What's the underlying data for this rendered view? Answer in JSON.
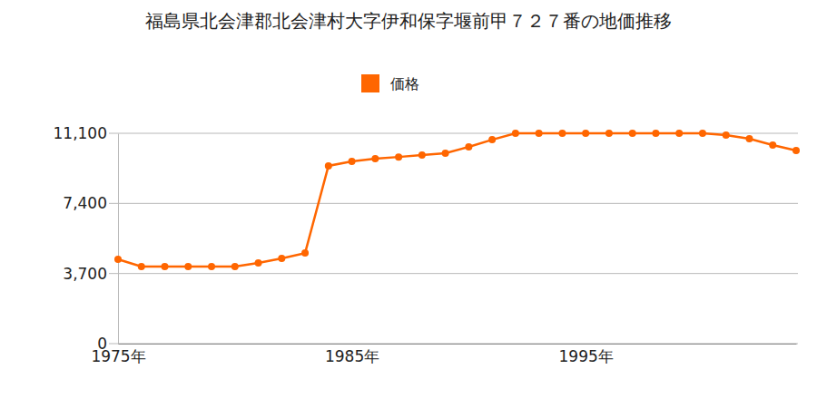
{
  "chart_data": {
    "type": "line",
    "title": "福島県北会津郡北会津村大字伊和保字堰前甲７２７番の地価推移",
    "x": [
      1975,
      1976,
      1977,
      1978,
      1979,
      1980,
      1981,
      1982,
      1983,
      1984,
      1985,
      1986,
      1987,
      1988,
      1989,
      1990,
      1991,
      1992,
      1993,
      1994,
      1995,
      1996,
      1997,
      1998,
      1999,
      2000,
      2001,
      2002,
      2003,
      2004
    ],
    "series": [
      {
        "name": "価格",
        "color": "#ff6600",
        "marker": "circle",
        "values": [
          4450,
          4070,
          4070,
          4070,
          4070,
          4070,
          4260,
          4500,
          4780,
          9380,
          9620,
          9760,
          9850,
          9950,
          10050,
          10380,
          10760,
          11100,
          11100,
          11100,
          11100,
          11100,
          11100,
          11100,
          11100,
          11100,
          11000,
          10810,
          10480,
          10190
        ]
      }
    ],
    "xlim": [
      1975,
      2004
    ],
    "xticks": [
      {
        "value": 1975,
        "label": "1975年"
      },
      {
        "value": 1985,
        "label": "1985年"
      },
      {
        "value": 1995,
        "label": "1995年"
      }
    ],
    "ylim": [
      0,
      11100
    ],
    "yticks": [
      0,
      {
        "value": 3700,
        "label": "3,700"
      },
      {
        "value": 7400,
        "label": "7,400"
      },
      {
        "value": 11100,
        "label": "11,100"
      }
    ],
    "grid": true,
    "legend": "top"
  }
}
